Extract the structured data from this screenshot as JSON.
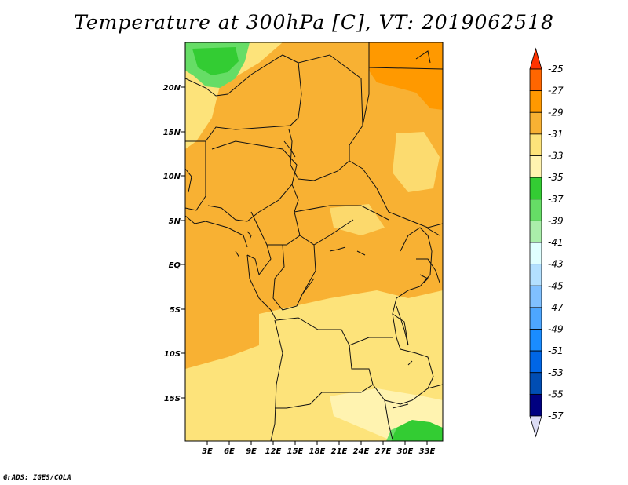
{
  "title": "Temperature at 300hPa [C], VT: 2019062518",
  "credit": "GrADS: IGES/COLA",
  "map": {
    "lat_labels": [
      "20N",
      "15N",
      "10N",
      "5N",
      "EQ",
      "5S",
      "10S",
      "15S"
    ],
    "lon_labels": [
      "3E",
      "6E",
      "9E",
      "12E",
      "15E",
      "18E",
      "21E",
      "24E",
      "27E",
      "30E",
      "33E"
    ]
  },
  "colorbar": {
    "levels": [
      {
        "label": "-25",
        "color": "#ff3300"
      },
      {
        "label": "-27",
        "color": "#ff6600"
      },
      {
        "label": "-29",
        "color": "#ff9900"
      },
      {
        "label": "-31",
        "color": "#f8b133"
      },
      {
        "label": "-33",
        "color": "#fde37a"
      },
      {
        "label": "-35",
        "color": "#fff3b0"
      },
      {
        "label": "-37",
        "color": "#33cc33"
      },
      {
        "label": "-39",
        "color": "#66dd66"
      },
      {
        "label": "-41",
        "color": "#aaeeaa"
      },
      {
        "label": "-43",
        "color": "#e0ffff"
      },
      {
        "label": "-45",
        "color": "#b3e0ff"
      },
      {
        "label": "-47",
        "color": "#80c0ff"
      },
      {
        "label": "-49",
        "color": "#4da6ff"
      },
      {
        "label": "-51",
        "color": "#1a8cff"
      },
      {
        "label": "-53",
        "color": "#0066e6"
      },
      {
        "label": "-55",
        "color": "#004db3"
      },
      {
        "label": "-57",
        "color": "#000080"
      }
    ],
    "lower_triangle_color": "#dcdcf5",
    "upper_triangle_color": "#ff3300"
  }
}
